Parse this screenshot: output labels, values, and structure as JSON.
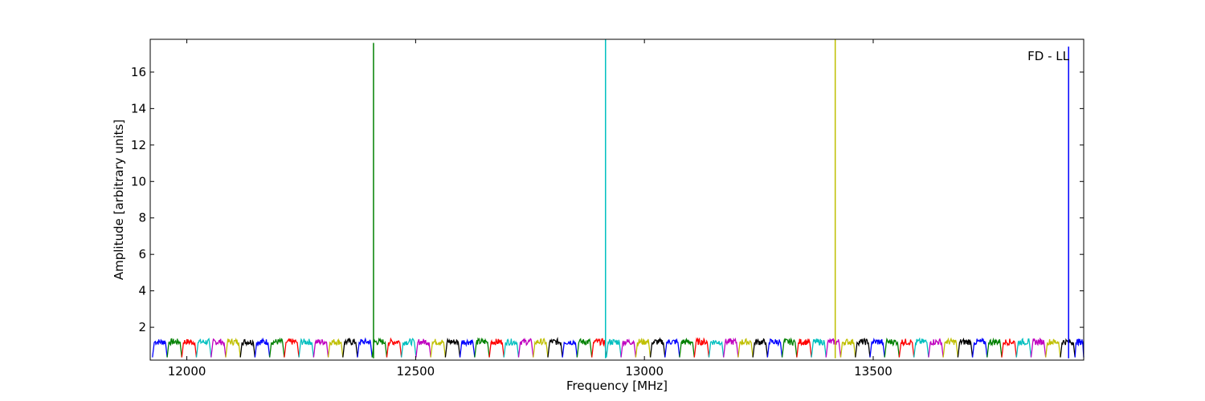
{
  "chart_data": {
    "type": "line",
    "xlabel": "Frequency [MHz]",
    "ylabel": "Amplitude [arbitrary units]",
    "annotation": "FD - LL",
    "xlim": [
      11920,
      13960
    ],
    "ylim": [
      0.2,
      17.8
    ],
    "x_ticks": [
      12000,
      12500,
      13000,
      13500
    ],
    "y_ticks": [
      2,
      4,
      6,
      8,
      10,
      12,
      14,
      16
    ],
    "channel": {
      "start": 11925,
      "width": 32,
      "colors": [
        "#0000ff",
        "#008000",
        "#ff0000",
        "#00bfbf",
        "#bf00bf",
        "#bfbf00",
        "#000000"
      ],
      "passband_level": 1.2,
      "edge_level": 0.35
    },
    "spikes": [
      {
        "x": 12408,
        "y": 17.6,
        "color": "#008000"
      },
      {
        "x": 12915,
        "y": 17.8,
        "color": "#00bfbf"
      },
      {
        "x": 13417,
        "y": 17.8,
        "color": "#bfbf00"
      },
      {
        "x": 13927,
        "y": 17.4,
        "color": "#0000ff"
      }
    ]
  }
}
